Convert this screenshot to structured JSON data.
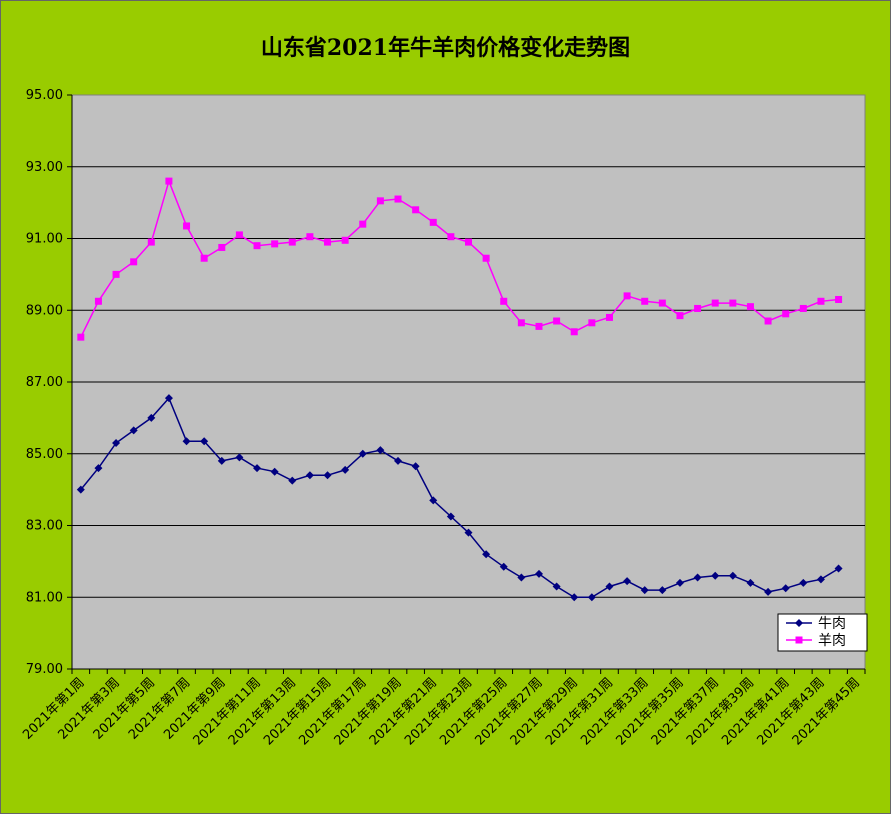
{
  "title": "山东省2021年牛羊肉价格变化走势图",
  "chart_data": {
    "type": "line",
    "title": "山东省2021年牛羊肉价格变化走势图",
    "xlabel": "",
    "ylabel": "",
    "ylim": [
      79,
      95
    ],
    "yticks": [
      "95.00",
      "93.00",
      "91.00",
      "89.00",
      "87.00",
      "85.00",
      "83.00",
      "81.00",
      "79.00"
    ],
    "ytick_values": [
      95,
      93,
      91,
      89,
      87,
      85,
      83,
      81,
      79
    ],
    "x_labels": [
      "2021年第1周",
      "2021年第3周",
      "2021年第5周",
      "2021年第7周",
      "2021年第9周",
      "2021年第11周",
      "2021年第13周",
      "2021年第15周",
      "2021年第17周",
      "2021年第19周",
      "2021年第21周",
      "2021年第23周",
      "2021年第25周",
      "2021年第27周",
      "2021年第29周",
      "2021年第31周",
      "2021年第33周",
      "2021年第35周",
      "2021年第37周",
      "2021年第39周",
      "2021年第41周",
      "2021年第43周",
      "2021年第45周"
    ],
    "grid": true,
    "legend": "bottom-right",
    "series": [
      {
        "name": "牛肉",
        "color": "#000080",
        "marker": "diamond",
        "values": [
          84.0,
          84.6,
          85.3,
          85.65,
          86.0,
          86.55,
          85.35,
          85.35,
          84.8,
          84.9,
          84.6,
          84.5,
          84.25,
          84.4,
          84.4,
          84.55,
          85.0,
          85.1,
          84.8,
          84.65,
          83.7,
          83.25,
          82.8,
          82.2,
          81.85,
          81.55,
          81.65,
          81.3,
          81.0,
          81.0,
          81.3,
          81.45,
          81.2,
          81.2,
          81.4,
          81.55,
          81.6,
          81.6,
          81.4,
          81.15,
          81.25,
          81.4,
          81.5,
          81.8
        ]
      },
      {
        "name": "羊肉",
        "color": "#ff00ff",
        "marker": "square",
        "values": [
          88.25,
          89.25,
          90.0,
          90.35,
          90.9,
          92.6,
          91.35,
          90.45,
          90.75,
          91.1,
          90.8,
          90.85,
          90.9,
          91.05,
          90.9,
          90.95,
          91.4,
          92.05,
          92.1,
          91.8,
          91.45,
          91.05,
          90.9,
          90.45,
          89.25,
          88.65,
          88.55,
          88.7,
          88.4,
          88.65,
          88.8,
          89.4,
          89.25,
          89.2,
          88.85,
          89.05,
          89.2,
          89.2,
          89.1,
          88.7,
          88.9,
          89.05,
          89.25,
          89.3
        ]
      }
    ]
  }
}
